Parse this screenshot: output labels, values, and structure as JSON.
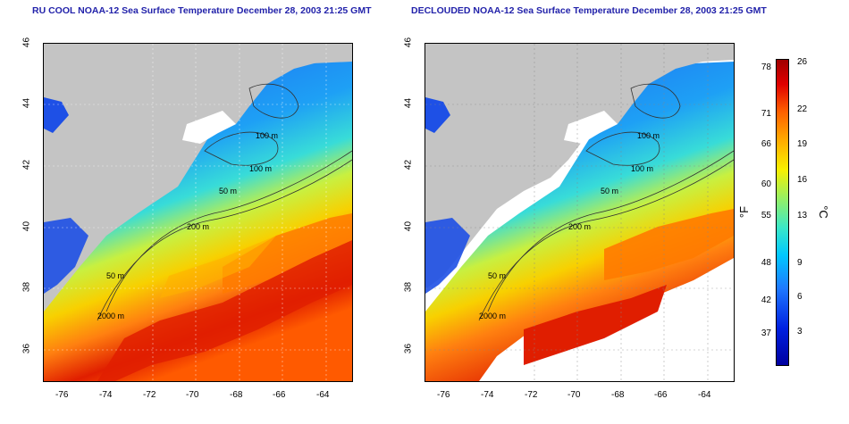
{
  "titles": {
    "left": "RU COOL NOAA-12 Sea Surface Temperature December 28, 2003 21:25 GMT",
    "right": "DECLOUDED NOAA-12 Sea Surface Temperature December 28, 2003 21:25 GMT"
  },
  "x_ticks": [
    "-76",
    "-74",
    "-72",
    "-70",
    "-68",
    "-66",
    "-64"
  ],
  "y_ticks": [
    "46",
    "44",
    "42",
    "40",
    "38",
    "36"
  ],
  "contour_labels": {
    "c100a": "100 m",
    "c100b": "100 m",
    "c50a": "50 m",
    "c200": "200 m",
    "c50b": "50 m",
    "c2000": "2000 m"
  },
  "colorbar": {
    "fahrenheit_label": "°F",
    "celsius_label": "°C",
    "fahrenheit_ticks": [
      "78",
      "71",
      "66",
      "60",
      "55",
      "48",
      "42",
      "37"
    ],
    "celsius_ticks": [
      "26",
      "22",
      "19",
      "16",
      "13",
      "9",
      "6",
      "3"
    ]
  },
  "colors": {
    "land": "#c4c4c4",
    "title": "#2222aa",
    "cold": "#1e64f0",
    "warm": "#e01e00"
  }
}
